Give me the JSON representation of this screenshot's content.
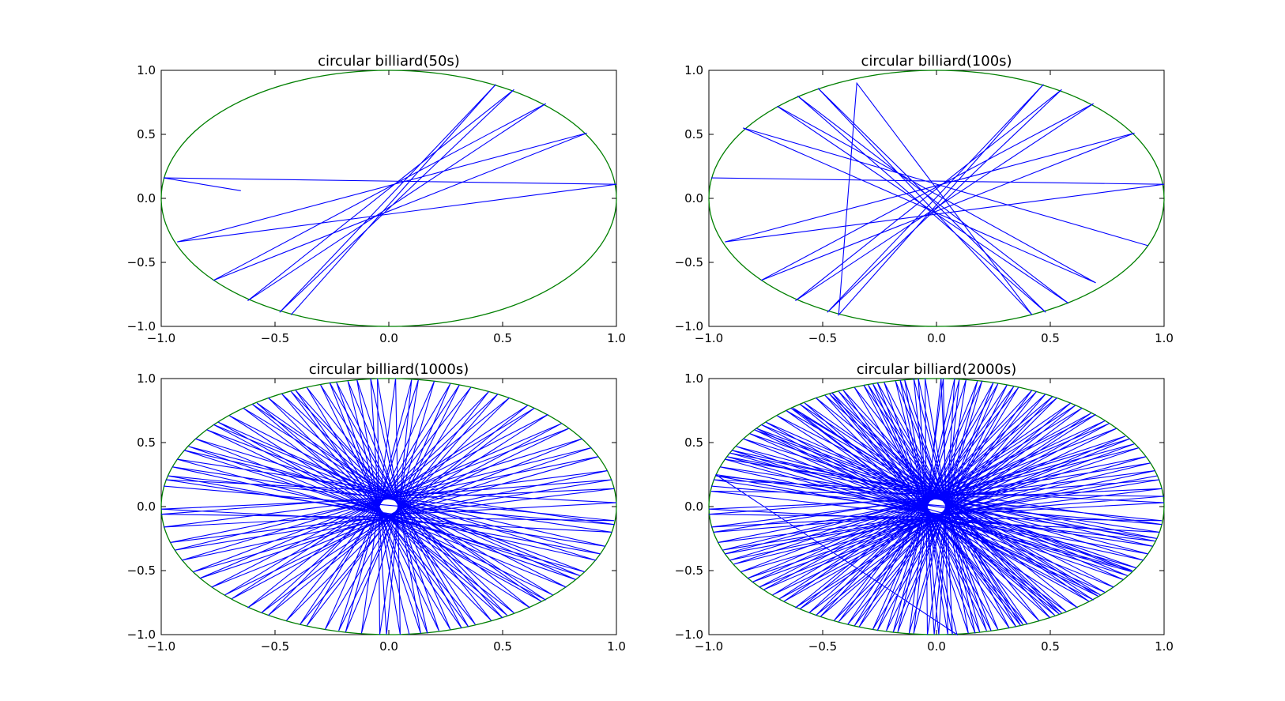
{
  "chart_data": [
    {
      "type": "line",
      "title": "circular billiard(50s)",
      "xlim": [
        -1.0,
        1.0
      ],
      "ylim": [
        -1.0,
        1.0
      ],
      "xticks": [
        "−1.0",
        "−0.5",
        "0.0",
        "0.5",
        "1.0"
      ],
      "yticks": [
        "−1.0",
        "−0.5",
        "0.0",
        "0.5",
        "1.0"
      ],
      "grid": false,
      "colors": {
        "boundary": "#007f00",
        "trajectory": "#0000ff"
      },
      "series": [
        {
          "x": [
            -0.65,
            -0.99,
            1.0,
            -0.93,
            0.87,
            -0.77,
            0.69,
            -0.62,
            0.55,
            -0.48,
            0.47,
            -0.43
          ],
          "y": [
            0.06,
            0.16,
            0.11,
            -0.34,
            0.51,
            -0.64,
            0.74,
            -0.8,
            0.85,
            -0.89,
            0.89,
            -0.91
          ]
        }
      ]
    },
    {
      "type": "line",
      "title": "circular billiard(100s)",
      "xlim": [
        -1.0,
        1.0
      ],
      "ylim": [
        -1.0,
        1.0
      ],
      "xticks": [
        "−1.0",
        "−0.5",
        "0.0",
        "0.5",
        "1.0"
      ],
      "yticks": [
        "−1.0",
        "−0.5",
        "0.0",
        "0.5",
        "1.0"
      ],
      "grid": false,
      "colors": {
        "boundary": "#007f00",
        "trajectory": "#0000ff"
      },
      "series": [
        {
          "x": [
            -0.99,
            1.0,
            -0.93,
            0.87,
            -0.77,
            0.69,
            -0.62,
            0.55,
            -0.48,
            0.47,
            -0.43,
            -0.35,
            0.42,
            -0.52,
            0.48,
            -0.61,
            0.58,
            -0.7,
            0.7,
            -0.85,
            0.93
          ],
          "y": [
            0.16,
            0.11,
            -0.34,
            0.51,
            -0.64,
            0.74,
            -0.8,
            0.85,
            -0.89,
            0.89,
            -0.91,
            0.9,
            -0.91,
            0.86,
            -0.89,
            0.8,
            -0.82,
            0.72,
            -0.66,
            0.55,
            -0.37
          ]
        }
      ]
    },
    {
      "type": "line",
      "title": "circular billiard(1000s)",
      "xlim": [
        -1.0,
        1.0
      ],
      "ylim": [
        -1.0,
        1.0
      ],
      "xticks": [
        "−1.0",
        "−0.5",
        "0.0",
        "0.5",
        "1.0"
      ],
      "yticks": [
        "−1.0",
        "−0.5",
        "0.0",
        "0.5",
        "1.0"
      ],
      "grid": false,
      "colors": {
        "boundary": "#007f00",
        "trajectory": "#0000ff"
      },
      "series": [
        {
          "x": [
            -0.99,
            0.99,
            -0.93,
            0.86,
            -0.8,
            0.72,
            -0.64,
            0.55,
            -0.47,
            0.38,
            -0.3,
            0.22,
            -0.14,
            0.05,
            0.03,
            -0.12,
            0.2,
            -0.28,
            0.36,
            -0.45,
            0.53,
            -0.62,
            0.7,
            -0.78,
            0.85,
            -0.91,
            0.96,
            -0.99,
            1.0,
            -0.98,
            0.95,
            -0.9,
            0.84,
            -0.77,
            0.69,
            -0.6,
            0.52,
            -0.43,
            0.35,
            -0.26,
            0.17,
            -0.08,
            -0.01,
            0.1,
            -0.19,
            0.27,
            -0.36,
            0.44,
            -0.53,
            0.61,
            -0.69,
            0.76,
            -0.83,
            0.89,
            -0.94,
            0.98,
            -1.0,
            0.99,
            -0.97,
            0.93,
            -0.88,
            0.82,
            -0.75,
            0.67,
            -0.58,
            0.5,
            -0.41,
            0.32,
            -0.23,
            0.14,
            -0.05,
            -0.04,
            0.13,
            -0.22,
            0.31,
            -0.39,
            0.48,
            -0.56,
            0.64,
            -0.72,
            0.79,
            -0.86,
            0.92,
            -0.96,
            0.99,
            -1.0,
            0.98,
            -0.95,
            0.91,
            -0.85,
            0.78,
            -0.7,
            0.62,
            -0.53,
            0.45,
            -0.36,
            0.27,
            -0.18,
            0.09
          ],
          "y": [
            0.16,
            -0.14,
            0.37,
            -0.51,
            0.6,
            -0.69,
            0.77,
            -0.83,
            0.88,
            -0.92,
            0.95,
            -0.97,
            0.99,
            -1.0,
            1.0,
            -0.99,
            0.98,
            -0.96,
            0.93,
            -0.89,
            0.85,
            -0.79,
            0.72,
            -0.63,
            0.53,
            -0.42,
            0.28,
            -0.16,
            0.03,
            0.21,
            -0.31,
            0.44,
            -0.54,
            0.64,
            -0.73,
            0.8,
            -0.85,
            0.9,
            -0.94,
            0.97,
            -0.99,
            1.0,
            -1.0,
            0.99,
            -0.98,
            0.96,
            -0.93,
            0.9,
            -0.85,
            0.79,
            -0.72,
            0.65,
            -0.56,
            0.46,
            -0.34,
            0.21,
            -0.06,
            -0.11,
            0.24,
            -0.37,
            0.47,
            -0.57,
            0.66,
            -0.74,
            0.81,
            -0.87,
            0.91,
            -0.95,
            0.97,
            -0.99,
            1.0,
            -1.0,
            0.99,
            -0.97,
            0.95,
            -0.92,
            0.88,
            -0.83,
            0.77,
            -0.69,
            0.61,
            -0.51,
            0.39,
            -0.28,
            0.14,
            -0.02,
            -0.2,
            0.31,
            -0.42,
            0.53,
            -0.63,
            0.71,
            -0.79,
            0.85,
            -0.89,
            0.93,
            -0.96,
            0.98,
            -1.0
          ]
        }
      ]
    },
    {
      "type": "line",
      "title": "circular billiard(2000s)",
      "xlim": [
        -1.0,
        1.0
      ],
      "ylim": [
        -1.0,
        1.0
      ],
      "xticks": [
        "−1.0",
        "−0.5",
        "0.0",
        "0.5",
        "1.0"
      ],
      "yticks": [
        "−1.0",
        "−0.5",
        "0.0",
        "0.5",
        "1.0"
      ],
      "grid": false,
      "colors": {
        "boundary": "#007f00",
        "trajectory": "#0000ff"
      },
      "series": [
        {
          "x": [
            -0.99,
            0.99,
            -0.93,
            0.86,
            -0.8,
            0.72,
            -0.64,
            0.55,
            -0.47,
            0.38,
            -0.3,
            0.22,
            -0.14,
            0.05,
            0.03,
            -0.12,
            0.2,
            -0.28,
            0.36,
            -0.45,
            0.53,
            -0.62,
            0.7,
            -0.78,
            0.85,
            -0.91,
            0.96,
            -0.99,
            1.0,
            -0.98,
            0.95,
            -0.9,
            0.84,
            -0.77,
            0.69,
            -0.6,
            0.52,
            -0.43,
            0.35,
            -0.26,
            0.17,
            -0.08,
            -0.01,
            0.1,
            -0.19,
            0.27,
            -0.36,
            0.44,
            -0.53,
            0.61,
            -0.69,
            0.76,
            -0.83,
            0.89,
            -0.94,
            0.98,
            -1.0,
            0.99,
            -0.97,
            0.93,
            -0.88,
            0.82,
            -0.75,
            0.67,
            -0.58,
            0.5,
            -0.41,
            0.32,
            -0.23,
            0.14,
            -0.05,
            -0.04,
            0.13,
            -0.22,
            0.31,
            -0.39,
            0.48,
            -0.56,
            0.64,
            -0.72,
            0.79,
            -0.86,
            0.92,
            -0.96,
            0.99,
            -1.0,
            0.98,
            -0.95,
            0.91,
            -0.85,
            0.78,
            -0.7,
            0.62,
            -0.53,
            0.45,
            -0.36,
            0.27,
            -0.18,
            0.09,
            -0.97,
            0.97,
            -0.91,
            0.88,
            -0.82,
            0.74,
            -0.66,
            0.57,
            -0.49,
            0.4,
            -0.32,
            0.24,
            -0.16,
            0.07,
            0.02,
            -0.1,
            0.18,
            -0.26,
            0.34,
            -0.43,
            0.51,
            -0.6,
            0.68,
            -0.76,
            0.83,
            -0.89,
            0.94,
            -0.98,
            1.0,
            -0.99,
            0.96,
            -0.92,
            0.86,
            -0.79,
            0.71,
            -0.63,
            0.54,
            -0.46,
            0.37,
            -0.28,
            0.19,
            -0.1,
            0.01,
            0.08,
            -0.17,
            0.25,
            -0.34,
            0.42,
            -0.51,
            0.59,
            -0.67,
            0.74,
            -0.81,
            0.87,
            -0.93,
            0.97
          ],
          "y": [
            0.16,
            -0.14,
            0.37,
            -0.51,
            0.6,
            -0.69,
            0.77,
            -0.83,
            0.88,
            -0.92,
            0.95,
            -0.97,
            0.99,
            -1.0,
            1.0,
            -0.99,
            0.98,
            -0.96,
            0.93,
            -0.89,
            0.85,
            -0.79,
            0.72,
            -0.63,
            0.53,
            -0.42,
            0.28,
            -0.16,
            0.03,
            0.21,
            -0.31,
            0.44,
            -0.54,
            0.64,
            -0.73,
            0.8,
            -0.85,
            0.9,
            -0.94,
            0.97,
            -0.99,
            1.0,
            -1.0,
            0.99,
            -0.98,
            0.96,
            -0.93,
            0.9,
            -0.85,
            0.79,
            -0.72,
            0.65,
            -0.56,
            0.46,
            -0.34,
            0.21,
            -0.06,
            -0.11,
            0.24,
            -0.37,
            0.47,
            -0.57,
            0.66,
            -0.74,
            0.81,
            -0.87,
            0.91,
            -0.95,
            0.97,
            -0.99,
            1.0,
            -1.0,
            0.99,
            -0.97,
            0.95,
            -0.92,
            0.88,
            -0.83,
            0.77,
            -0.69,
            0.61,
            -0.51,
            0.39,
            -0.28,
            0.14,
            -0.02,
            -0.2,
            0.31,
            -0.42,
            0.53,
            -0.63,
            0.71,
            -0.79,
            0.85,
            -0.89,
            0.93,
            -0.96,
            0.98,
            -1.0,
            0.25,
            -0.25,
            0.42,
            -0.48,
            0.57,
            -0.67,
            0.75,
            -0.82,
            0.87,
            -0.92,
            0.95,
            -0.97,
            0.99,
            -1.0,
            1.0,
            -0.99,
            0.98,
            -0.97,
            0.94,
            -0.9,
            0.86,
            -0.8,
            0.73,
            -0.65,
            0.55,
            -0.45,
            0.34,
            -0.2,
            0.08,
            0.12,
            -0.27,
            0.39,
            -0.5,
            0.61,
            -0.7,
            0.77,
            -0.84,
            0.89,
            -0.93,
            0.96,
            -0.98,
            1.0,
            -1.0,
            1.0,
            -0.98,
            0.97,
            -0.94,
            0.91,
            -0.86,
            0.81,
            -0.74,
            0.67,
            -0.59,
            0.49,
            -0.37,
            0.24
          ]
        }
      ]
    }
  ]
}
